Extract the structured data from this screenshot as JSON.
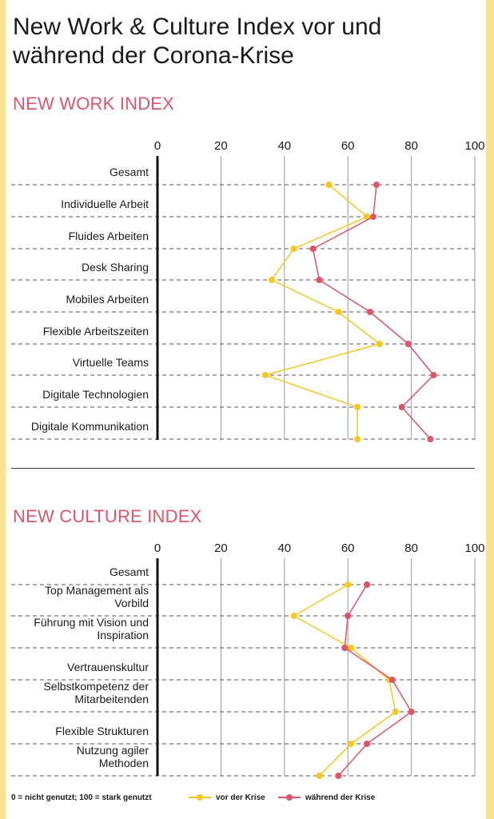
{
  "title": "New Work & Culture Index vor und während der Corona-Krise",
  "colors": {
    "before": "#f5c820",
    "during": "#e0546a",
    "frame": "#f6e38c",
    "heading": "#e0546a"
  },
  "chart_data": [
    {
      "type": "line",
      "title": "NEW WORK INDEX",
      "xlim": [
        0,
        100
      ],
      "xticks": [
        "0",
        "20",
        "40",
        "60",
        "80",
        "100"
      ],
      "categories": [
        [
          "Gesamt"
        ],
        [
          "Individuelle Arbeit"
        ],
        [
          "Fluides Arbeiten"
        ],
        [
          "Desk Sharing"
        ],
        [
          "Mobiles Arbeiten"
        ],
        [
          "Flexible Arbeitszeiten"
        ],
        [
          "Virtuelle Teams"
        ],
        [
          "Digitale Technologien"
        ],
        [
          "Digitale Kommunikation"
        ]
      ],
      "series": [
        {
          "name": "vor der Krise",
          "values": [
            54,
            66,
            43,
            36,
            57,
            70,
            34,
            63,
            63
          ]
        },
        {
          "name": "während der Krise",
          "values": [
            69,
            68,
            49,
            51,
            67,
            79,
            87,
            77,
            86
          ]
        }
      ]
    },
    {
      "type": "line",
      "title": "NEW CULTURE INDEX",
      "xlim": [
        0,
        100
      ],
      "xticks": [
        "0",
        "20",
        "40",
        "60",
        "80",
        "100"
      ],
      "categories": [
        [
          "Gesamt"
        ],
        [
          "Top Management als",
          "Vorbild"
        ],
        [
          "Führung mit Vision und",
          "Inspiration"
        ],
        [
          "Vertrauenskultur"
        ],
        [
          "Selbstkompetenz der",
          "Mitarbeitenden"
        ],
        [
          "Flexible Strukturen"
        ],
        [
          "Nutzung agiler",
          "Methoden"
        ]
      ],
      "series": [
        {
          "name": "vor der Krise",
          "values": [
            60,
            43,
            61,
            73,
            75,
            61,
            51
          ]
        },
        {
          "name": "während der Krise",
          "values": [
            66,
            60,
            59,
            74,
            80,
            66,
            57
          ]
        }
      ]
    }
  ],
  "footer": {
    "note": "0 = nicht genutzt; 100 = stark genutzt",
    "legend_before": "vor der Krise",
    "legend_during": "während der Krise"
  }
}
